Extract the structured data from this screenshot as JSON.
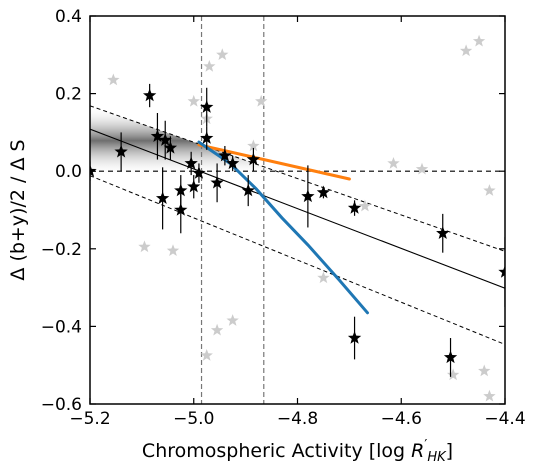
{
  "chart_data": {
    "type": "scatter",
    "xlabel_main": "Chromospheric Activity [log ",
    "xlabel_math": "R",
    "xlabel_prime": "′",
    "xlabel_sub": "HK",
    "xlabel_close": "]",
    "ylabel": "Δ (b+y)/2 / Δ S",
    "xlim": [
      -5.2,
      -4.4
    ],
    "ylim": [
      -0.6,
      0.4
    ],
    "x_ticks": [
      -5.2,
      -5.0,
      -4.8,
      -4.6,
      -4.4
    ],
    "x_tick_labels": [
      "−5.2",
      "−5.0",
      "−4.8",
      "−4.6",
      "−4.4"
    ],
    "y_ticks": [
      -0.6,
      -0.4,
      -0.2,
      0.0,
      0.2,
      0.4
    ],
    "y_tick_labels": [
      "−0.6",
      "−0.4",
      "−0.2",
      "0.0",
      "0.2",
      "0.4"
    ],
    "vertical_lines": [
      -4.985,
      -4.865
    ],
    "horizontal_line": 0.0,
    "fit": {
      "slope": -0.5125,
      "intercept": -2.5565,
      "band_upper_offset": [
        0.06,
        0.095
      ],
      "band_lower_offset": [
        0.12,
        0.145
      ]
    },
    "colors": {
      "stars": "#000000",
      "background_stars": "#cccccc",
      "orange_line": "#ff7f0e",
      "blue_line": "#1f77b4",
      "band": "#888888"
    },
    "orange_line": [
      {
        "x": -4.99,
        "y": 0.068
      },
      {
        "x": -4.7,
        "y": -0.02
      }
    ],
    "blue_line": [
      {
        "x": -4.99,
        "y": 0.075
      },
      {
        "x": -4.93,
        "y": 0.02
      },
      {
        "x": -4.88,
        "y": -0.045
      },
      {
        "x": -4.83,
        "y": -0.12
      },
      {
        "x": -4.78,
        "y": -0.19
      },
      {
        "x": -4.72,
        "y": -0.28
      },
      {
        "x": -4.665,
        "y": -0.365
      }
    ],
    "stars": [
      {
        "x": -5.2,
        "y": 0.0,
        "err": 0.025
      },
      {
        "x": -5.14,
        "y": 0.05,
        "err": 0.05
      },
      {
        "x": -5.085,
        "y": 0.195,
        "err": 0.03
      },
      {
        "x": -5.07,
        "y": 0.09,
        "err": 0.06
      },
      {
        "x": -5.055,
        "y": 0.08,
        "err": 0.05
      },
      {
        "x": -5.045,
        "y": 0.06,
        "err": 0.03
      },
      {
        "x": -5.06,
        "y": -0.07,
        "err": 0.08
      },
      {
        "x": -5.025,
        "y": -0.05,
        "err": 0.04
      },
      {
        "x": -5.025,
        "y": -0.1,
        "err": 0.06
      },
      {
        "x": -5.005,
        "y": 0.02,
        "err": 0.03
      },
      {
        "x": -5.0,
        "y": -0.04,
        "err": 0.03
      },
      {
        "x": -4.99,
        "y": -0.005,
        "err": 0.025
      },
      {
        "x": -4.975,
        "y": 0.165,
        "err": 0.05
      },
      {
        "x": -4.975,
        "y": 0.085,
        "err": 0.03
      },
      {
        "x": -4.955,
        "y": -0.03,
        "err": 0.05
      },
      {
        "x": -4.94,
        "y": 0.04,
        "err": 0.025
      },
      {
        "x": -4.925,
        "y": 0.02,
        "err": 0.02
      },
      {
        "x": -4.895,
        "y": -0.05,
        "err": 0.04
      },
      {
        "x": -4.885,
        "y": 0.03,
        "err": 0.03
      },
      {
        "x": -4.78,
        "y": -0.065,
        "err": 0.08
      },
      {
        "x": -4.75,
        "y": -0.055,
        "err": 0.015
      },
      {
        "x": -4.69,
        "y": -0.095,
        "err": 0.02
      },
      {
        "x": -4.69,
        "y": -0.43,
        "err": 0.055
      },
      {
        "x": -4.52,
        "y": -0.16,
        "err": 0.05
      },
      {
        "x": -4.505,
        "y": -0.48,
        "err": 0.05
      },
      {
        "x": -4.4,
        "y": -0.26,
        "err": 0.09
      }
    ],
    "background_stars": [
      {
        "x": -5.155,
        "y": 0.235
      },
      {
        "x": -5.095,
        "y": -0.195
      },
      {
        "x": -5.04,
        "y": -0.205
      },
      {
        "x": -5.0,
        "y": 0.18
      },
      {
        "x": -4.975,
        "y": 0.135
      },
      {
        "x": -4.97,
        "y": 0.27
      },
      {
        "x": -4.945,
        "y": 0.3
      },
      {
        "x": -4.975,
        "y": -0.475
      },
      {
        "x": -4.955,
        "y": -0.41
      },
      {
        "x": -4.925,
        "y": -0.385
      },
      {
        "x": -4.87,
        "y": 0.18
      },
      {
        "x": -4.885,
        "y": 0.065
      },
      {
        "x": -4.75,
        "y": -0.275
      },
      {
        "x": -4.67,
        "y": -0.09
      },
      {
        "x": -4.615,
        "y": 0.02
      },
      {
        "x": -4.56,
        "y": 0.005
      },
      {
        "x": -4.475,
        "y": 0.31
      },
      {
        "x": -4.45,
        "y": 0.335
      },
      {
        "x": -4.5,
        "y": -0.525
      },
      {
        "x": -4.44,
        "y": -0.515
      },
      {
        "x": -4.43,
        "y": -0.58
      },
      {
        "x": -4.43,
        "y": -0.05
      }
    ]
  }
}
